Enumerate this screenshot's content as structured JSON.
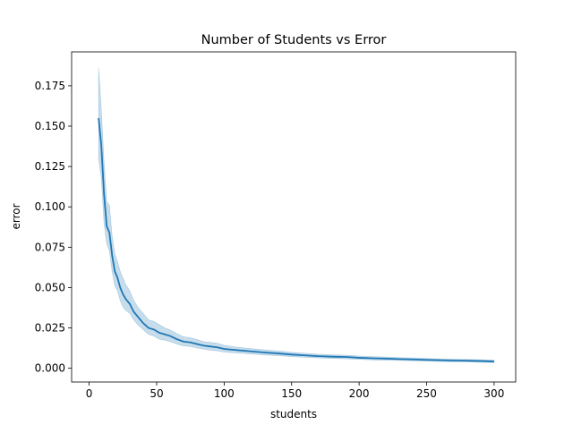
{
  "chart_data": {
    "type": "line",
    "title": "Number of Students vs Error",
    "xlabel": "students",
    "ylabel": "error",
    "xlim": [
      -13,
      316
    ],
    "ylim": [
      -0.0085,
      0.196
    ],
    "xticks": [
      0,
      50,
      100,
      150,
      200,
      250,
      300
    ],
    "xtick_labels": [
      "0",
      "50",
      "100",
      "150",
      "200",
      "250",
      "300"
    ],
    "yticks": [
      0.0,
      0.025,
      0.05,
      0.075,
      0.1,
      0.125,
      0.15,
      0.175
    ],
    "ytick_labels": [
      "0.000",
      "0.025",
      "0.050",
      "0.075",
      "0.100",
      "0.125",
      "0.150",
      "0.175"
    ],
    "grid": false,
    "legend": "none",
    "line_color": "#1f77b4",
    "band_color": "#1f77b4",
    "series": [
      {
        "x": [
          7,
          9,
          11,
          13,
          15,
          17,
          19,
          21,
          23,
          25,
          27,
          30,
          33,
          36,
          40,
          44,
          48,
          52,
          56,
          60,
          65,
          70,
          75,
          80,
          85,
          90,
          95,
          100,
          110,
          120,
          130,
          140,
          150,
          160,
          170,
          180,
          190,
          200,
          210,
          220,
          230,
          240,
          250,
          260,
          270,
          280,
          290,
          300
        ],
        "y": [
          0.155,
          0.138,
          0.108,
          0.088,
          0.084,
          0.07,
          0.06,
          0.056,
          0.05,
          0.046,
          0.043,
          0.04,
          0.035,
          0.032,
          0.028,
          0.025,
          0.024,
          0.022,
          0.021,
          0.02,
          0.018,
          0.0165,
          0.016,
          0.015,
          0.014,
          0.0135,
          0.013,
          0.012,
          0.0112,
          0.0105,
          0.0098,
          0.0092,
          0.0085,
          0.008,
          0.0075,
          0.0072,
          0.007,
          0.0065,
          0.0062,
          0.006,
          0.0057,
          0.0055,
          0.0052,
          0.005,
          0.0048,
          0.0047,
          0.0045,
          0.0042
        ],
        "lower": [
          0.13,
          0.118,
          0.09,
          0.077,
          0.073,
          0.06,
          0.051,
          0.048,
          0.042,
          0.038,
          0.036,
          0.034,
          0.03,
          0.027,
          0.024,
          0.021,
          0.02,
          0.018,
          0.0175,
          0.0165,
          0.015,
          0.0138,
          0.0135,
          0.0125,
          0.0118,
          0.0112,
          0.0108,
          0.01,
          0.0095,
          0.0089,
          0.0083,
          0.0078,
          0.0072,
          0.0068,
          0.0064,
          0.0061,
          0.0059,
          0.0055,
          0.0052,
          0.005,
          0.0048,
          0.0046,
          0.0044,
          0.0042,
          0.004,
          0.0039,
          0.0037,
          0.0035
        ],
        "upper": [
          0.186,
          0.16,
          0.128,
          0.103,
          0.101,
          0.082,
          0.071,
          0.066,
          0.06,
          0.056,
          0.052,
          0.048,
          0.042,
          0.038,
          0.034,
          0.03,
          0.029,
          0.027,
          0.025,
          0.0238,
          0.0215,
          0.0195,
          0.019,
          0.0178,
          0.0165,
          0.016,
          0.0155,
          0.0142,
          0.013,
          0.0122,
          0.0114,
          0.0107,
          0.0099,
          0.0093,
          0.0087,
          0.0084,
          0.0081,
          0.0076,
          0.0072,
          0.007,
          0.0066,
          0.0064,
          0.0061,
          0.0058,
          0.0056,
          0.0055,
          0.0053,
          0.005
        ]
      }
    ]
  }
}
